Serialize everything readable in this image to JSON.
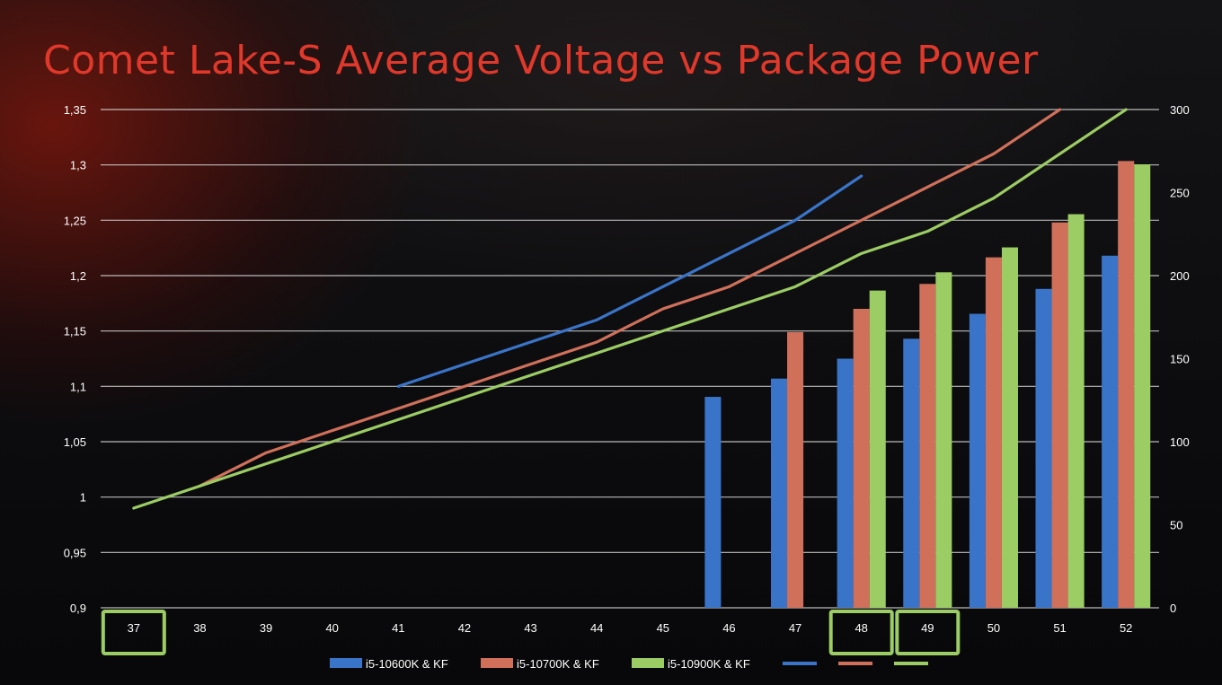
{
  "chart_data": {
    "type": "bar",
    "title": "Comet Lake-S Average Voltage vs Package Power",
    "categories": [
      "37",
      "38",
      "39",
      "40",
      "41",
      "42",
      "43",
      "44",
      "45",
      "46",
      "47",
      "48",
      "49",
      "50",
      "51",
      "52"
    ],
    "highlighted_categories": [
      "37",
      "48",
      "49"
    ],
    "y_left": {
      "ticks": [
        "1,35",
        "1,3",
        "1,25",
        "1,2",
        "1,15",
        "1,1",
        "1,05",
        "1",
        "0,95",
        "0,9"
      ],
      "range": [
        0.9,
        1.35
      ]
    },
    "y_right": {
      "ticks": [
        "300",
        "250",
        "200",
        "150",
        "100",
        "50",
        "0"
      ],
      "range": [
        0,
        300
      ]
    },
    "grid": true,
    "legend_position": "bottom",
    "colors": {
      "i5-10600K & KF": "#3a74c9",
      "i5-10700K & KF": "#d0705a",
      "i5-10900K & KF": "#9ccc64",
      "highlight": "#9ccc64",
      "title": "#e0382a"
    },
    "bar_series": [
      {
        "name": "i5-10600K & KF",
        "axis": "right",
        "color": "#3a74c9",
        "values": [
          null,
          null,
          null,
          null,
          null,
          null,
          null,
          null,
          null,
          127,
          138,
          150,
          162,
          177,
          192,
          212
        ]
      },
      {
        "name": "i5-10700K & KF",
        "axis": "right",
        "color": "#d0705a",
        "values": [
          null,
          null,
          null,
          null,
          null,
          null,
          null,
          null,
          null,
          null,
          166,
          180,
          195,
          211,
          232,
          269
        ]
      },
      {
        "name": "i5-10900K & KF",
        "axis": "right",
        "color": "#9ccc64",
        "values": [
          null,
          null,
          null,
          null,
          null,
          null,
          null,
          null,
          null,
          null,
          null,
          191,
          202,
          217,
          237,
          267
        ]
      }
    ],
    "line_series": [
      {
        "name": "i5-10600K & KF",
        "axis": "left",
        "color": "#3a74c9",
        "values": [
          null,
          null,
          null,
          null,
          1.1,
          1.12,
          1.14,
          1.16,
          1.19,
          1.22,
          1.25,
          1.29,
          null,
          null,
          null,
          null
        ]
      },
      {
        "name": "i5-10700K & KF",
        "axis": "left",
        "color": "#d0705a",
        "values": [
          null,
          1.01,
          1.04,
          1.06,
          1.08,
          1.1,
          1.12,
          1.14,
          1.17,
          1.19,
          1.22,
          1.25,
          1.28,
          1.31,
          1.35,
          null
        ]
      },
      {
        "name": "i5-10900K & KF",
        "axis": "left",
        "color": "#9ccc64",
        "values": [
          0.99,
          1.01,
          1.03,
          1.05,
          1.07,
          1.09,
          1.11,
          1.13,
          1.15,
          1.17,
          1.19,
          1.22,
          1.24,
          1.27,
          1.31,
          1.35
        ]
      }
    ],
    "legend": [
      "i5-10600K & KF",
      "i5-10700K & KF",
      "i5-10900K & KF"
    ]
  }
}
